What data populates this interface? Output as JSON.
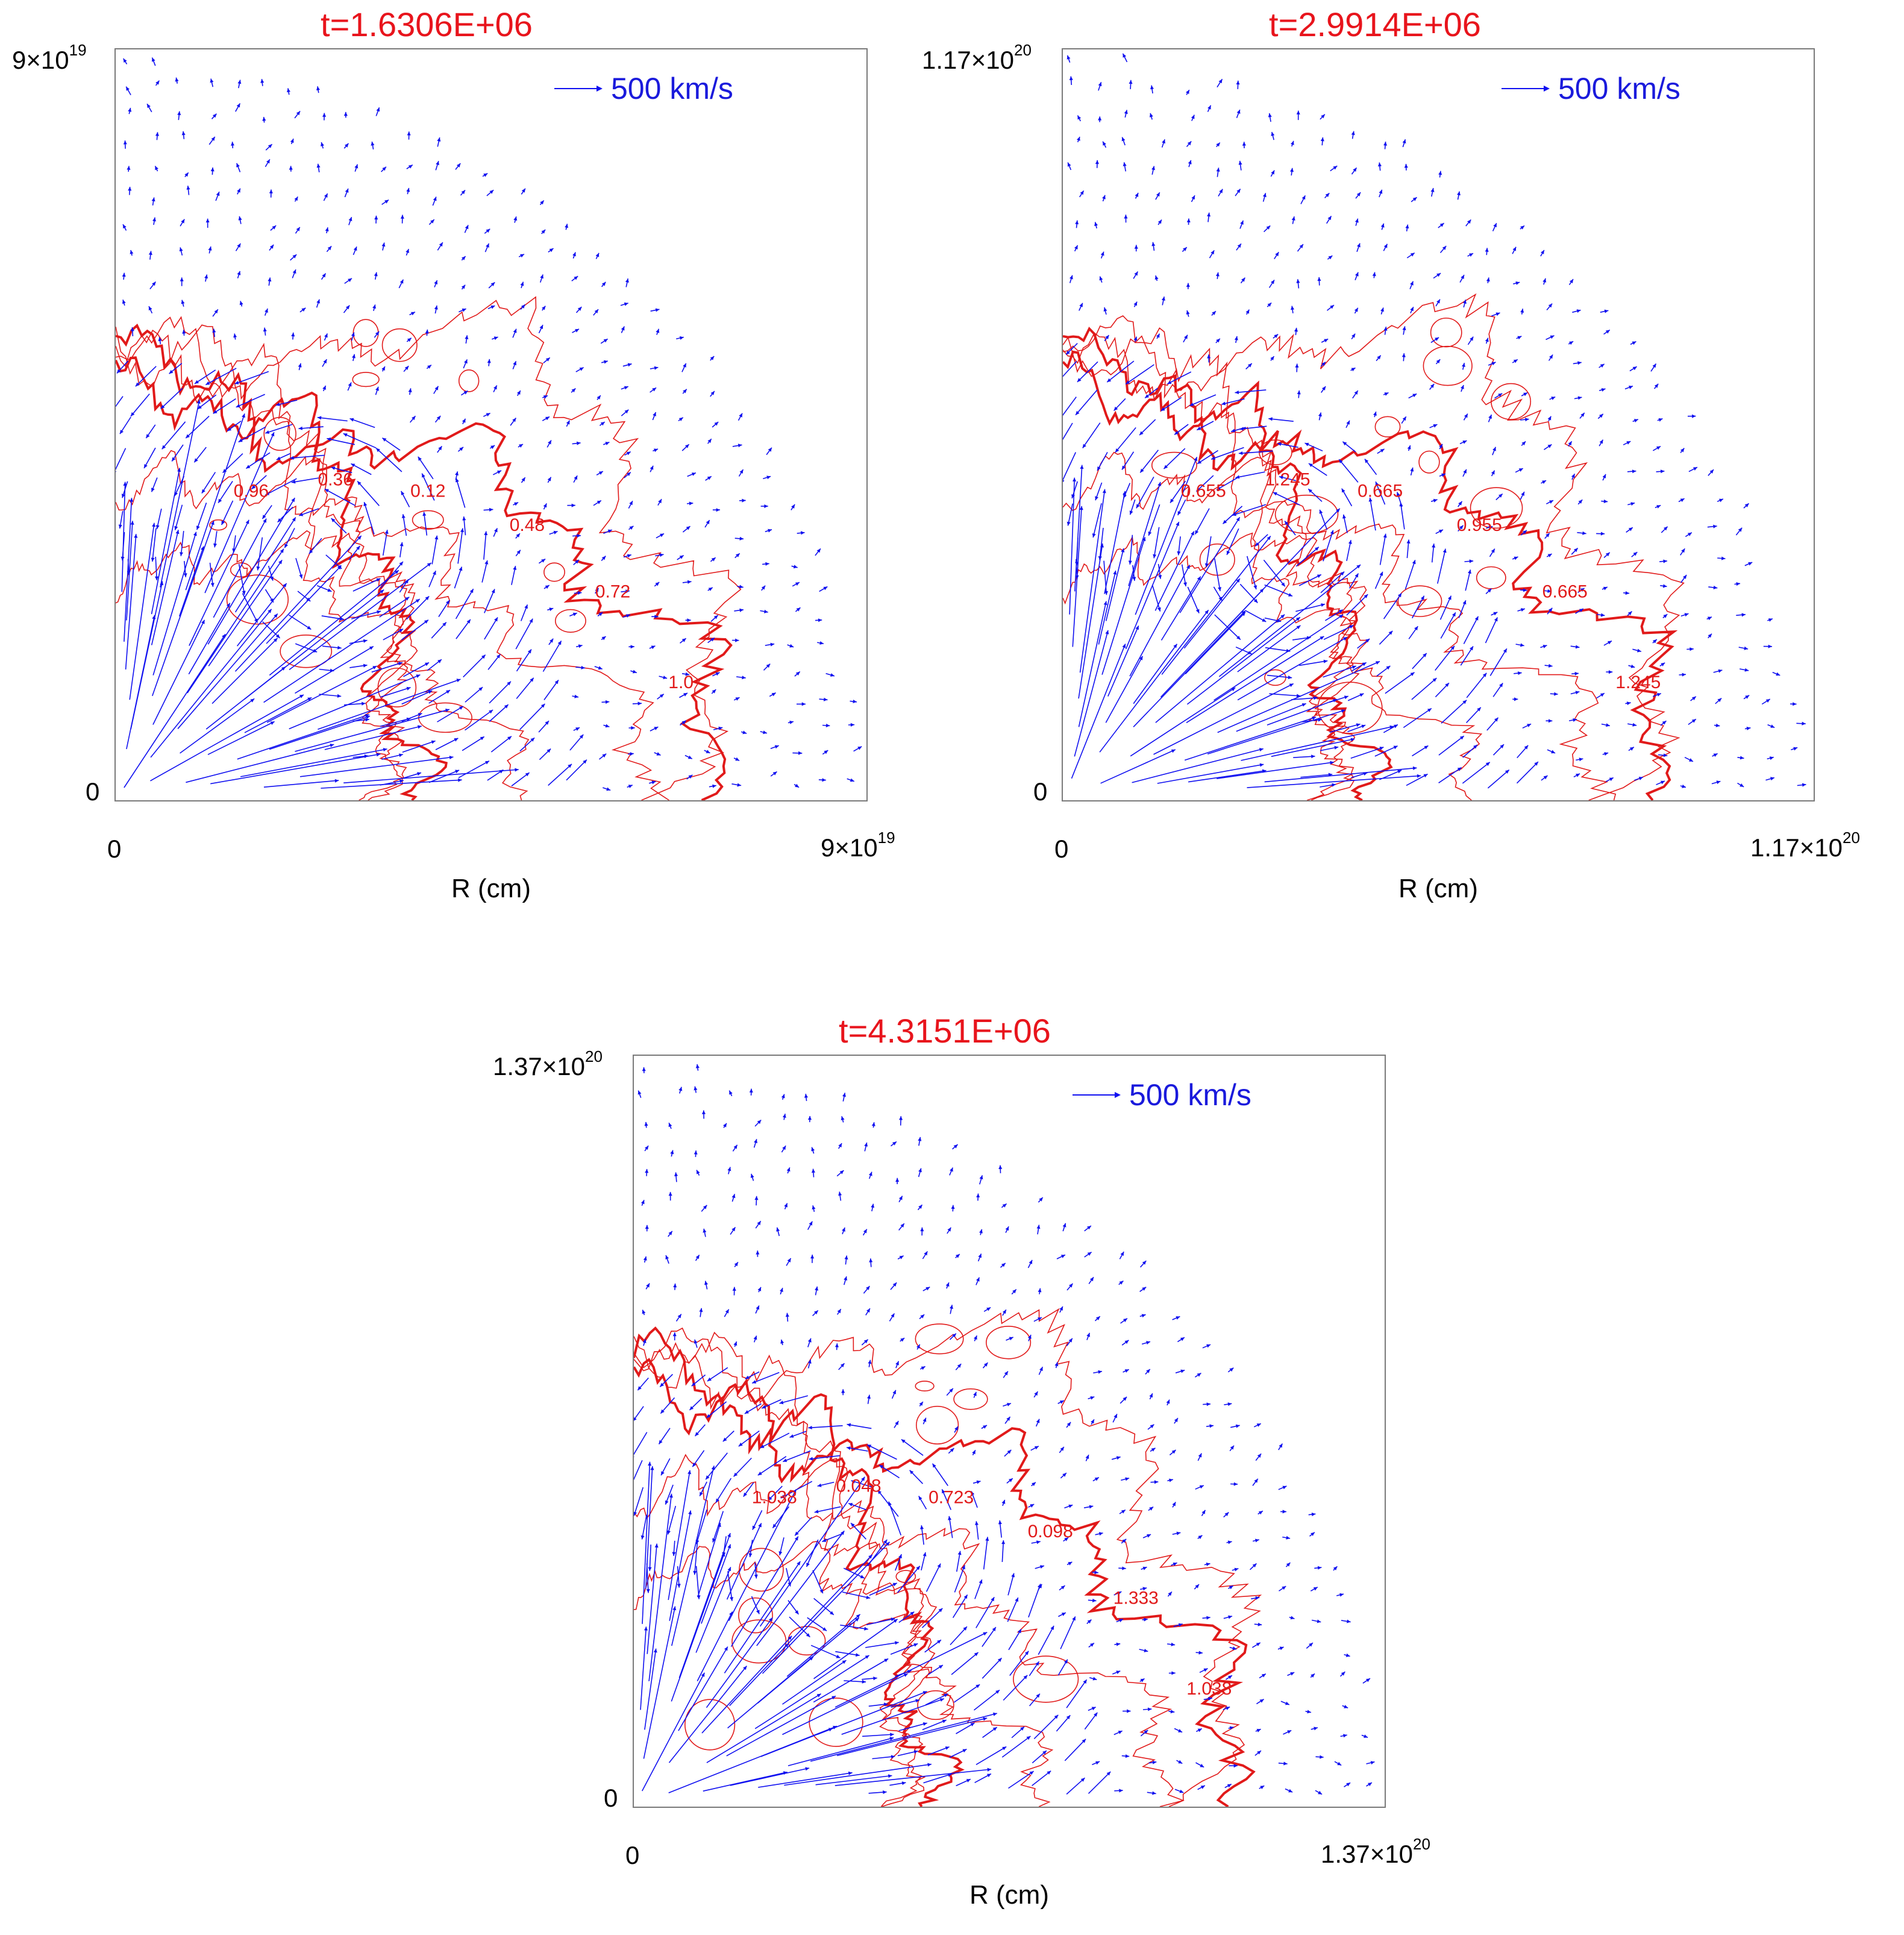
{
  "colors": {
    "title": "#e8141c",
    "contour": "#e11a1a",
    "vector": "#1010f0",
    "frame": "#7a7a7a"
  },
  "panels": [
    {
      "title": "t=1.6306E+06",
      "ymax_base": "9×10",
      "ymax_exp": "19",
      "y0": "0",
      "x0": "0",
      "xmax_base": "9×10",
      "xmax_exp": "19",
      "xlabel": "R (cm)",
      "legend": "500 km/s",
      "contour_labels": [
        "1.0",
        "0.72",
        "0.48",
        "0.12",
        "0.36",
        "0.96"
      ]
    },
    {
      "title": "t=2.9914E+06",
      "ymax_base": "1.17×10",
      "ymax_exp": "20",
      "y0": "0",
      "x0": "0",
      "xmax_base": "1.17×10",
      "xmax_exp": "20",
      "xlabel": "R (cm)",
      "legend": "500 km/s",
      "contour_labels": [
        "1.245",
        "0.665",
        "0.955",
        "0.665",
        "1.245",
        "0.655"
      ]
    },
    {
      "title": "t=4.3151E+06",
      "ymax_base": "1.37×10",
      "ymax_exp": "20",
      "y0": "0",
      "x0": "0",
      "xmax_base": "1.37×10",
      "xmax_exp": "20",
      "xlabel": "R (cm)",
      "legend": "500 km/s",
      "contour_labels": [
        "1.038",
        "1.333",
        "0.098",
        "0.723",
        "0.048",
        "1.038"
      ]
    }
  ]
}
